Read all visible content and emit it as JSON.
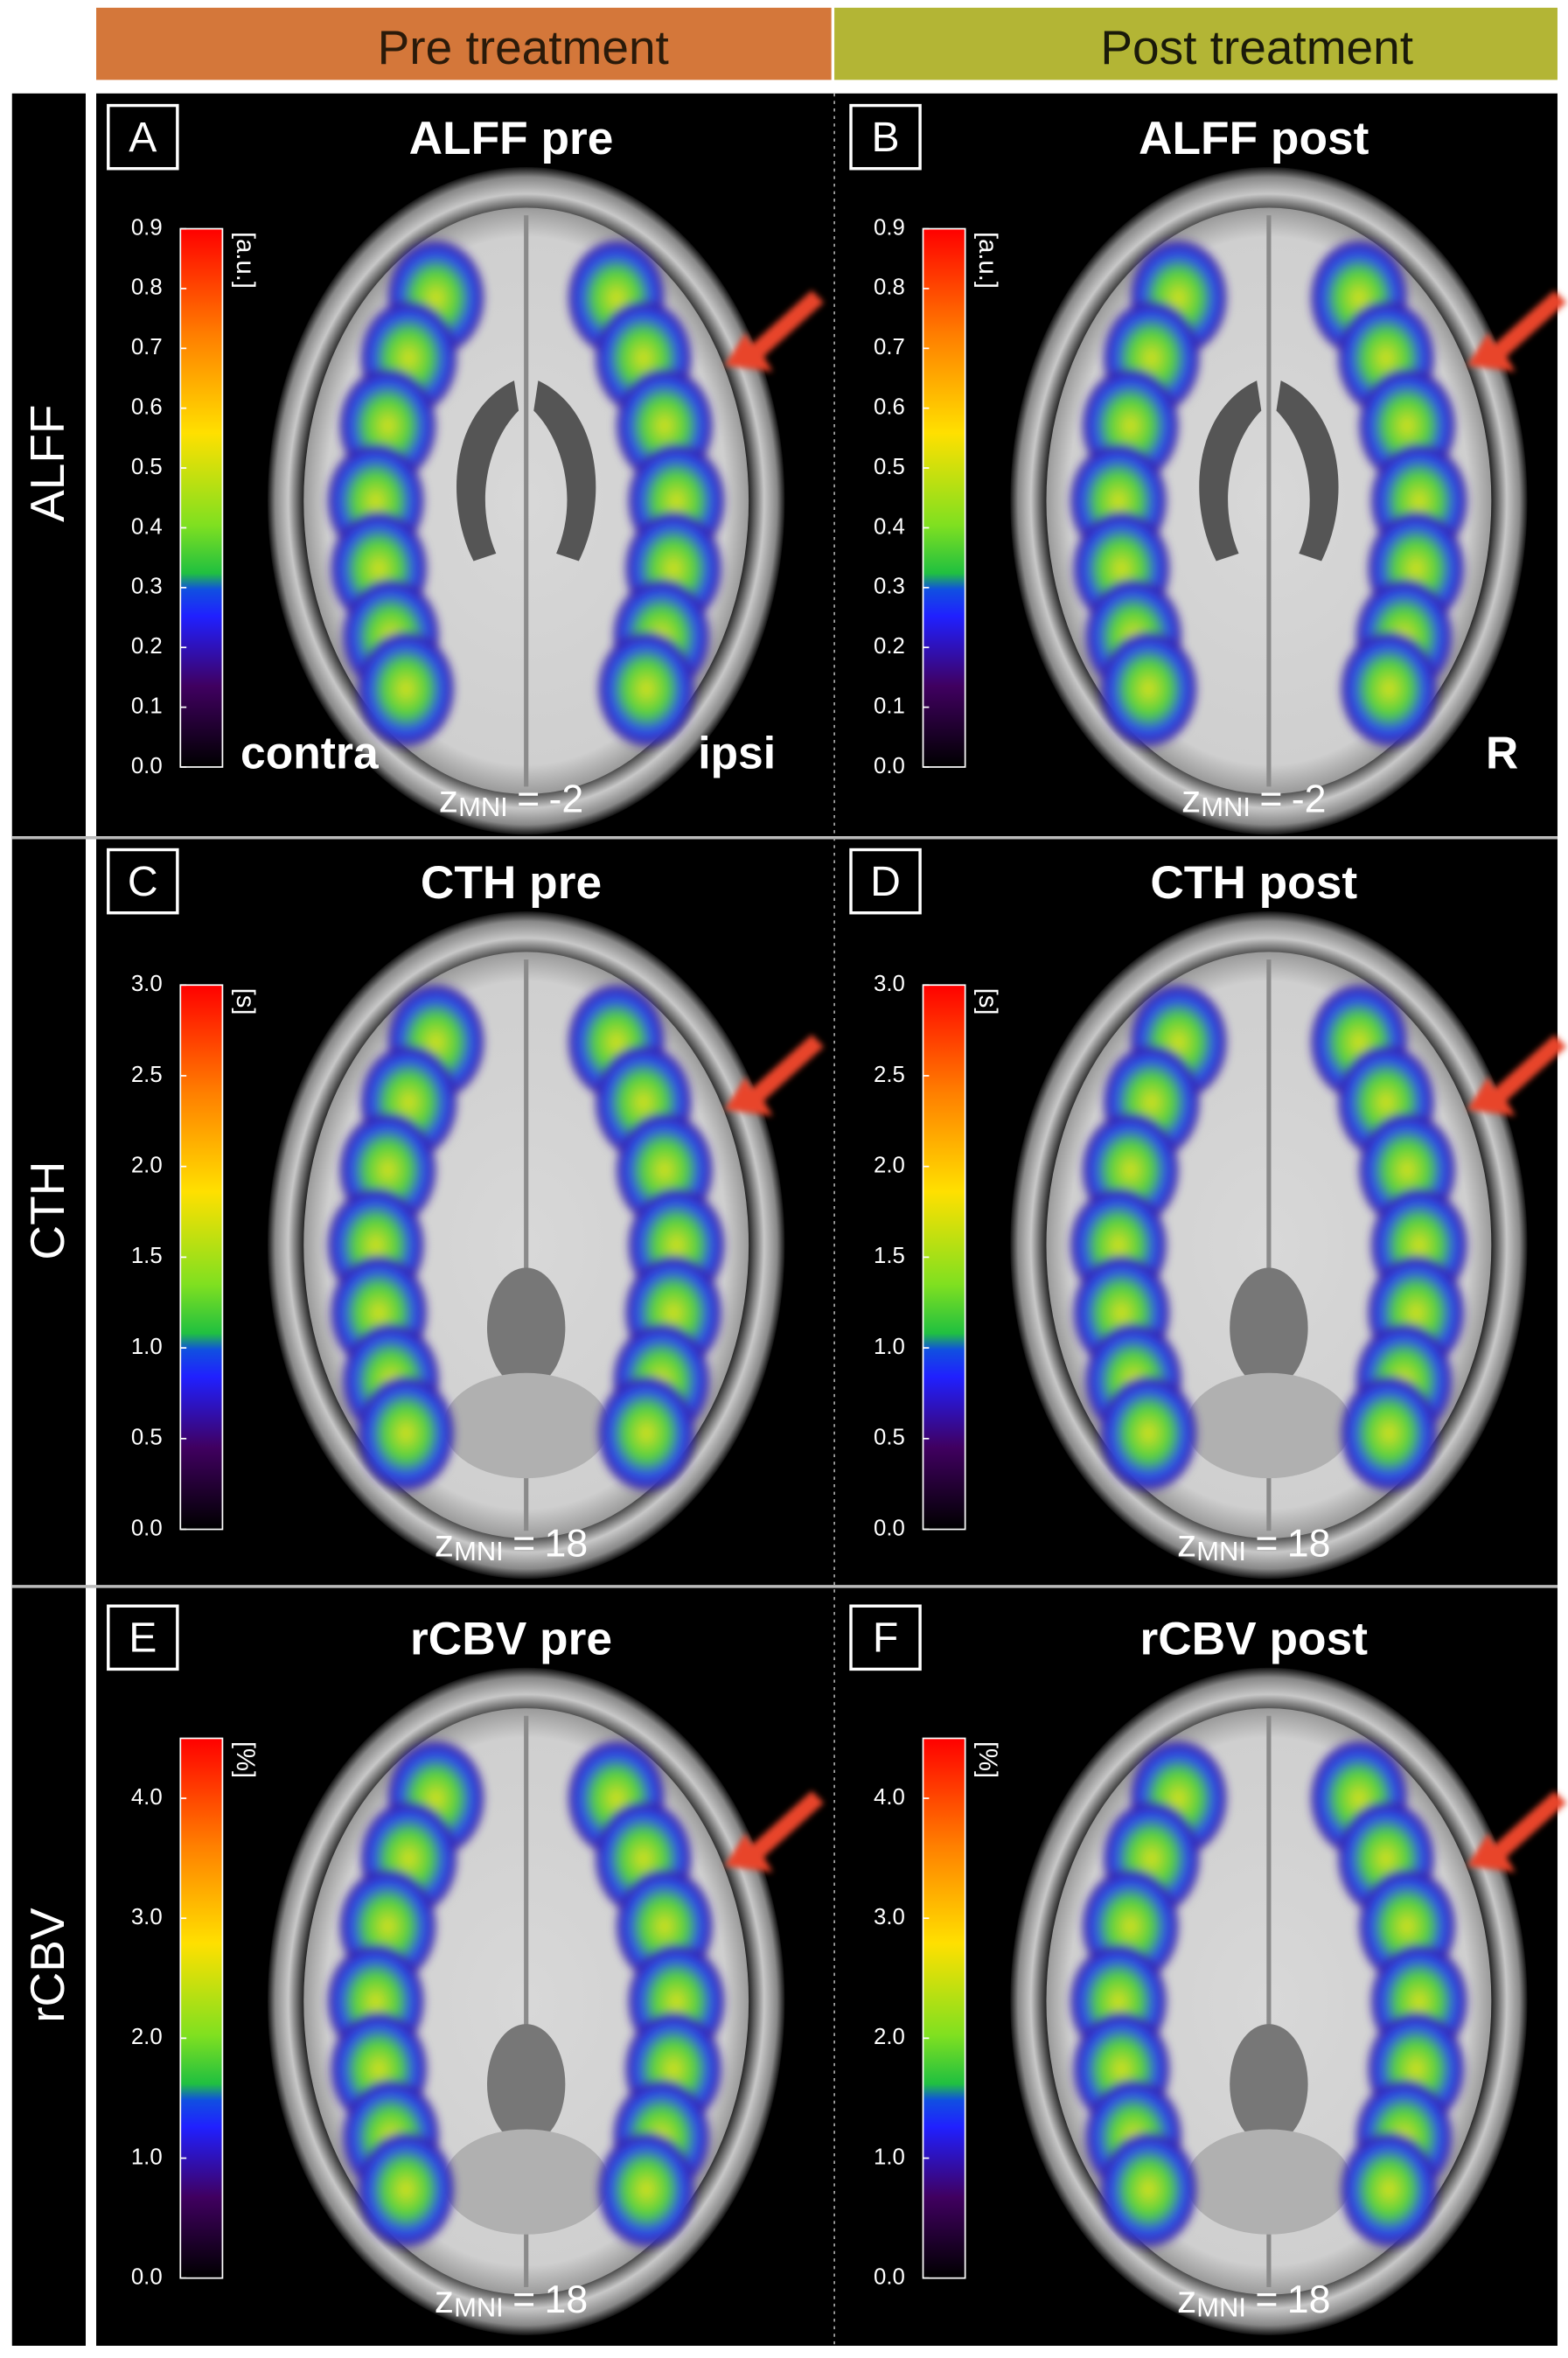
{
  "columns": [
    "Pre treatment",
    "Post treatment"
  ],
  "rows": [
    {
      "label": "ALFF",
      "panels": [
        {
          "letter": "A",
          "title": "ALFF pre",
          "colorbar": {
            "unit": "[a.u.]",
            "range": [
              0,
              0.9
            ],
            "ticks": [
              {
                "value": 0,
                "label": "0.0"
              },
              0.1,
              0.2,
              0.3,
              0.4,
              0.5,
              0.6,
              0.7,
              0.8,
              0.9
            ]
          },
          "z": {
            "symbol": "z",
            "subscript": "MNI",
            "relation": "=",
            "value": -2
          },
          "side_labels": {
            "left": "contra",
            "right": "ipsi"
          }
        },
        {
          "letter": "B",
          "title": "ALFF post",
          "colorbar": {
            "unit": "[a.u.]",
            "range": [
              0,
              0.9
            ],
            "ticks": [
              {
                "value": 0,
                "label": "0.0"
              },
              0.1,
              0.2,
              0.3,
              0.4,
              0.5,
              0.6,
              0.7,
              0.8,
              0.9
            ]
          },
          "z": {
            "symbol": "z",
            "subscript": "MNI",
            "relation": "=",
            "value": -2
          },
          "side_labels": {
            "right": "R"
          }
        }
      ]
    },
    {
      "label": "CTH",
      "panels": [
        {
          "letter": "C",
          "title": "CTH pre",
          "colorbar": {
            "unit": "[s]",
            "range": [
              0,
              3
            ],
            "ticks": [
              {
                "value": 0,
                "label": "0.0"
              },
              0.5,
              {
                "value": 1,
                "label": "1.0"
              },
              1.5,
              {
                "value": 2,
                "label": "2.0"
              },
              2.5,
              {
                "value": 3,
                "label": "3.0"
              }
            ]
          },
          "z": {
            "symbol": "z",
            "subscript": "MNI",
            "relation": "=",
            "value": 18
          }
        },
        {
          "letter": "D",
          "title": "CTH post",
          "colorbar": {
            "unit": "[s]",
            "range": [
              0,
              3
            ],
            "ticks": [
              {
                "value": 0,
                "label": "0.0"
              },
              0.5,
              {
                "value": 1,
                "label": "1.0"
              },
              1.5,
              {
                "value": 2,
                "label": "2.0"
              },
              2.5,
              {
                "value": 3,
                "label": "3.0"
              }
            ]
          },
          "z": {
            "symbol": "z",
            "subscript": "MNI",
            "relation": "=",
            "value": 18
          }
        }
      ]
    },
    {
      "label": "rCBV",
      "panels": [
        {
          "letter": "E",
          "title": "rCBV pre",
          "colorbar": {
            "unit": "[%]",
            "range": [
              0,
              4.5
            ],
            "ticks": [
              {
                "value": 0,
                "label": "0.0"
              },
              {
                "value": 1,
                "label": "1.0"
              },
              {
                "value": 2,
                "label": "2.0"
              },
              {
                "value": 3,
                "label": "3.0"
              },
              {
                "value": 4,
                "label": "4.0"
              }
            ]
          },
          "z": {
            "symbol": "z",
            "subscript": "MNI",
            "relation": "=",
            "value": 18
          }
        },
        {
          "letter": "F",
          "title": "rCBV post",
          "colorbar": {
            "unit": "[%]",
            "range": [
              0,
              4.5
            ],
            "ticks": [
              {
                "value": 0,
                "label": "0.0"
              },
              {
                "value": 1,
                "label": "1.0"
              },
              {
                "value": 2,
                "label": "2.0"
              },
              {
                "value": 3,
                "label": "3.0"
              },
              {
                "value": 4,
                "label": "4.0"
              }
            ]
          },
          "z": {
            "symbol": "z",
            "subscript": "MNI",
            "relation": "=",
            "value": 18
          }
        }
      ]
    }
  ]
}
